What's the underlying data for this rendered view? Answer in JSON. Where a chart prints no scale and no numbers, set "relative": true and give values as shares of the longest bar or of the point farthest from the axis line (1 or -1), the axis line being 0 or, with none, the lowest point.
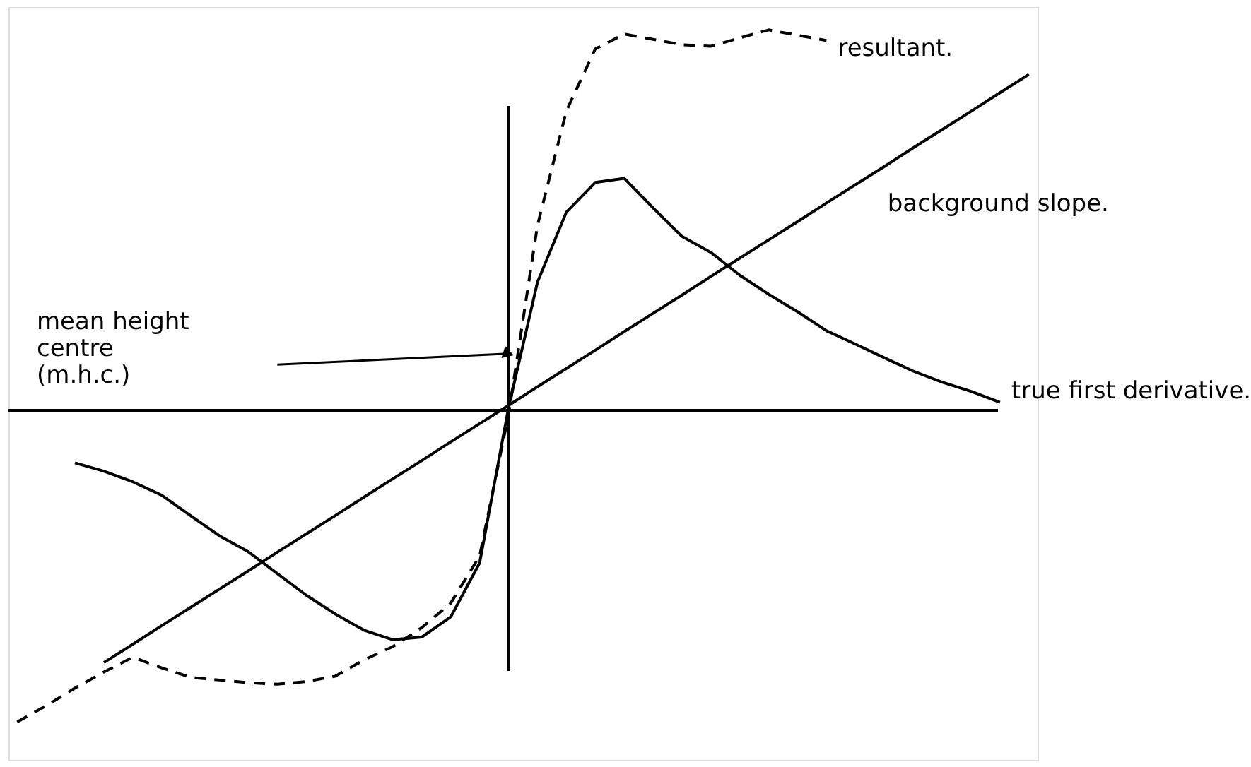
{
  "chart_data": {
    "type": "line",
    "relative": true,
    "legend": false,
    "marker": "none",
    "categories": [
      null,
      null,
      null,
      null,
      null,
      null,
      null,
      null,
      null,
      null,
      null,
      null,
      null,
      null,
      null,
      null,
      null,
      null,
      null,
      null,
      null,
      null,
      null,
      null,
      null,
      null,
      null,
      null,
      null,
      null,
      null,
      null,
      null,
      null,
      null,
      null
    ],
    "series": [
      {
        "name": "true first derivative.",
        "color": "#000000",
        "line_style": "solid",
        "values": [
          null,
          null,
          -0.138,
          -0.16,
          -0.188,
          -0.223,
          -0.277,
          -0.33,
          -0.372,
          -0.429,
          -0.486,
          -0.535,
          -0.578,
          -0.603,
          -0.596,
          -0.543,
          -0.401,
          0.007,
          0.337,
          0.521,
          0.599,
          0.61,
          0.532,
          0.457,
          0.415,
          0.355,
          0.305,
          0.259,
          0.209,
          0.174,
          0.138,
          0.103,
          0.074,
          0.05,
          0.021,
          null
        ]
      },
      {
        "name": "background slope.",
        "color": "#000000",
        "line_style": "solid",
        "values": [
          null,
          null,
          null,
          -0.663,
          -0.615,
          -0.566,
          -0.518,
          -0.47,
          -0.422,
          -0.373,
          -0.325,
          -0.277,
          -0.228,
          -0.18,
          -0.132,
          -0.083,
          -0.035,
          0.013,
          0.062,
          0.11,
          0.158,
          0.207,
          0.255,
          0.303,
          0.352,
          0.4,
          0.448,
          0.496,
          0.545,
          0.593,
          0.641,
          0.69,
          0.738,
          0.786,
          0.835,
          0.883
        ]
      },
      {
        "name": "resultant.",
        "color": "#000000",
        "line_style": "dashed",
        "values": [
          -0.819,
          -0.777,
          -0.73,
          -0.688,
          -0.649,
          -0.677,
          -0.702,
          -0.709,
          -0.716,
          -0.72,
          -0.713,
          -0.699,
          -0.656,
          -0.621,
          -0.571,
          -0.507,
          -0.383,
          -0.011,
          0.486,
          0.787,
          0.95,
          0.989,
          0.975,
          0.961,
          0.957,
          0.979,
          1.0,
          0.986,
          0.972,
          null,
          null,
          null,
          null,
          null,
          null,
          null
        ]
      }
    ],
    "annotations": [
      "mean height\ncentre\n(m.h.c.)"
    ]
  }
}
